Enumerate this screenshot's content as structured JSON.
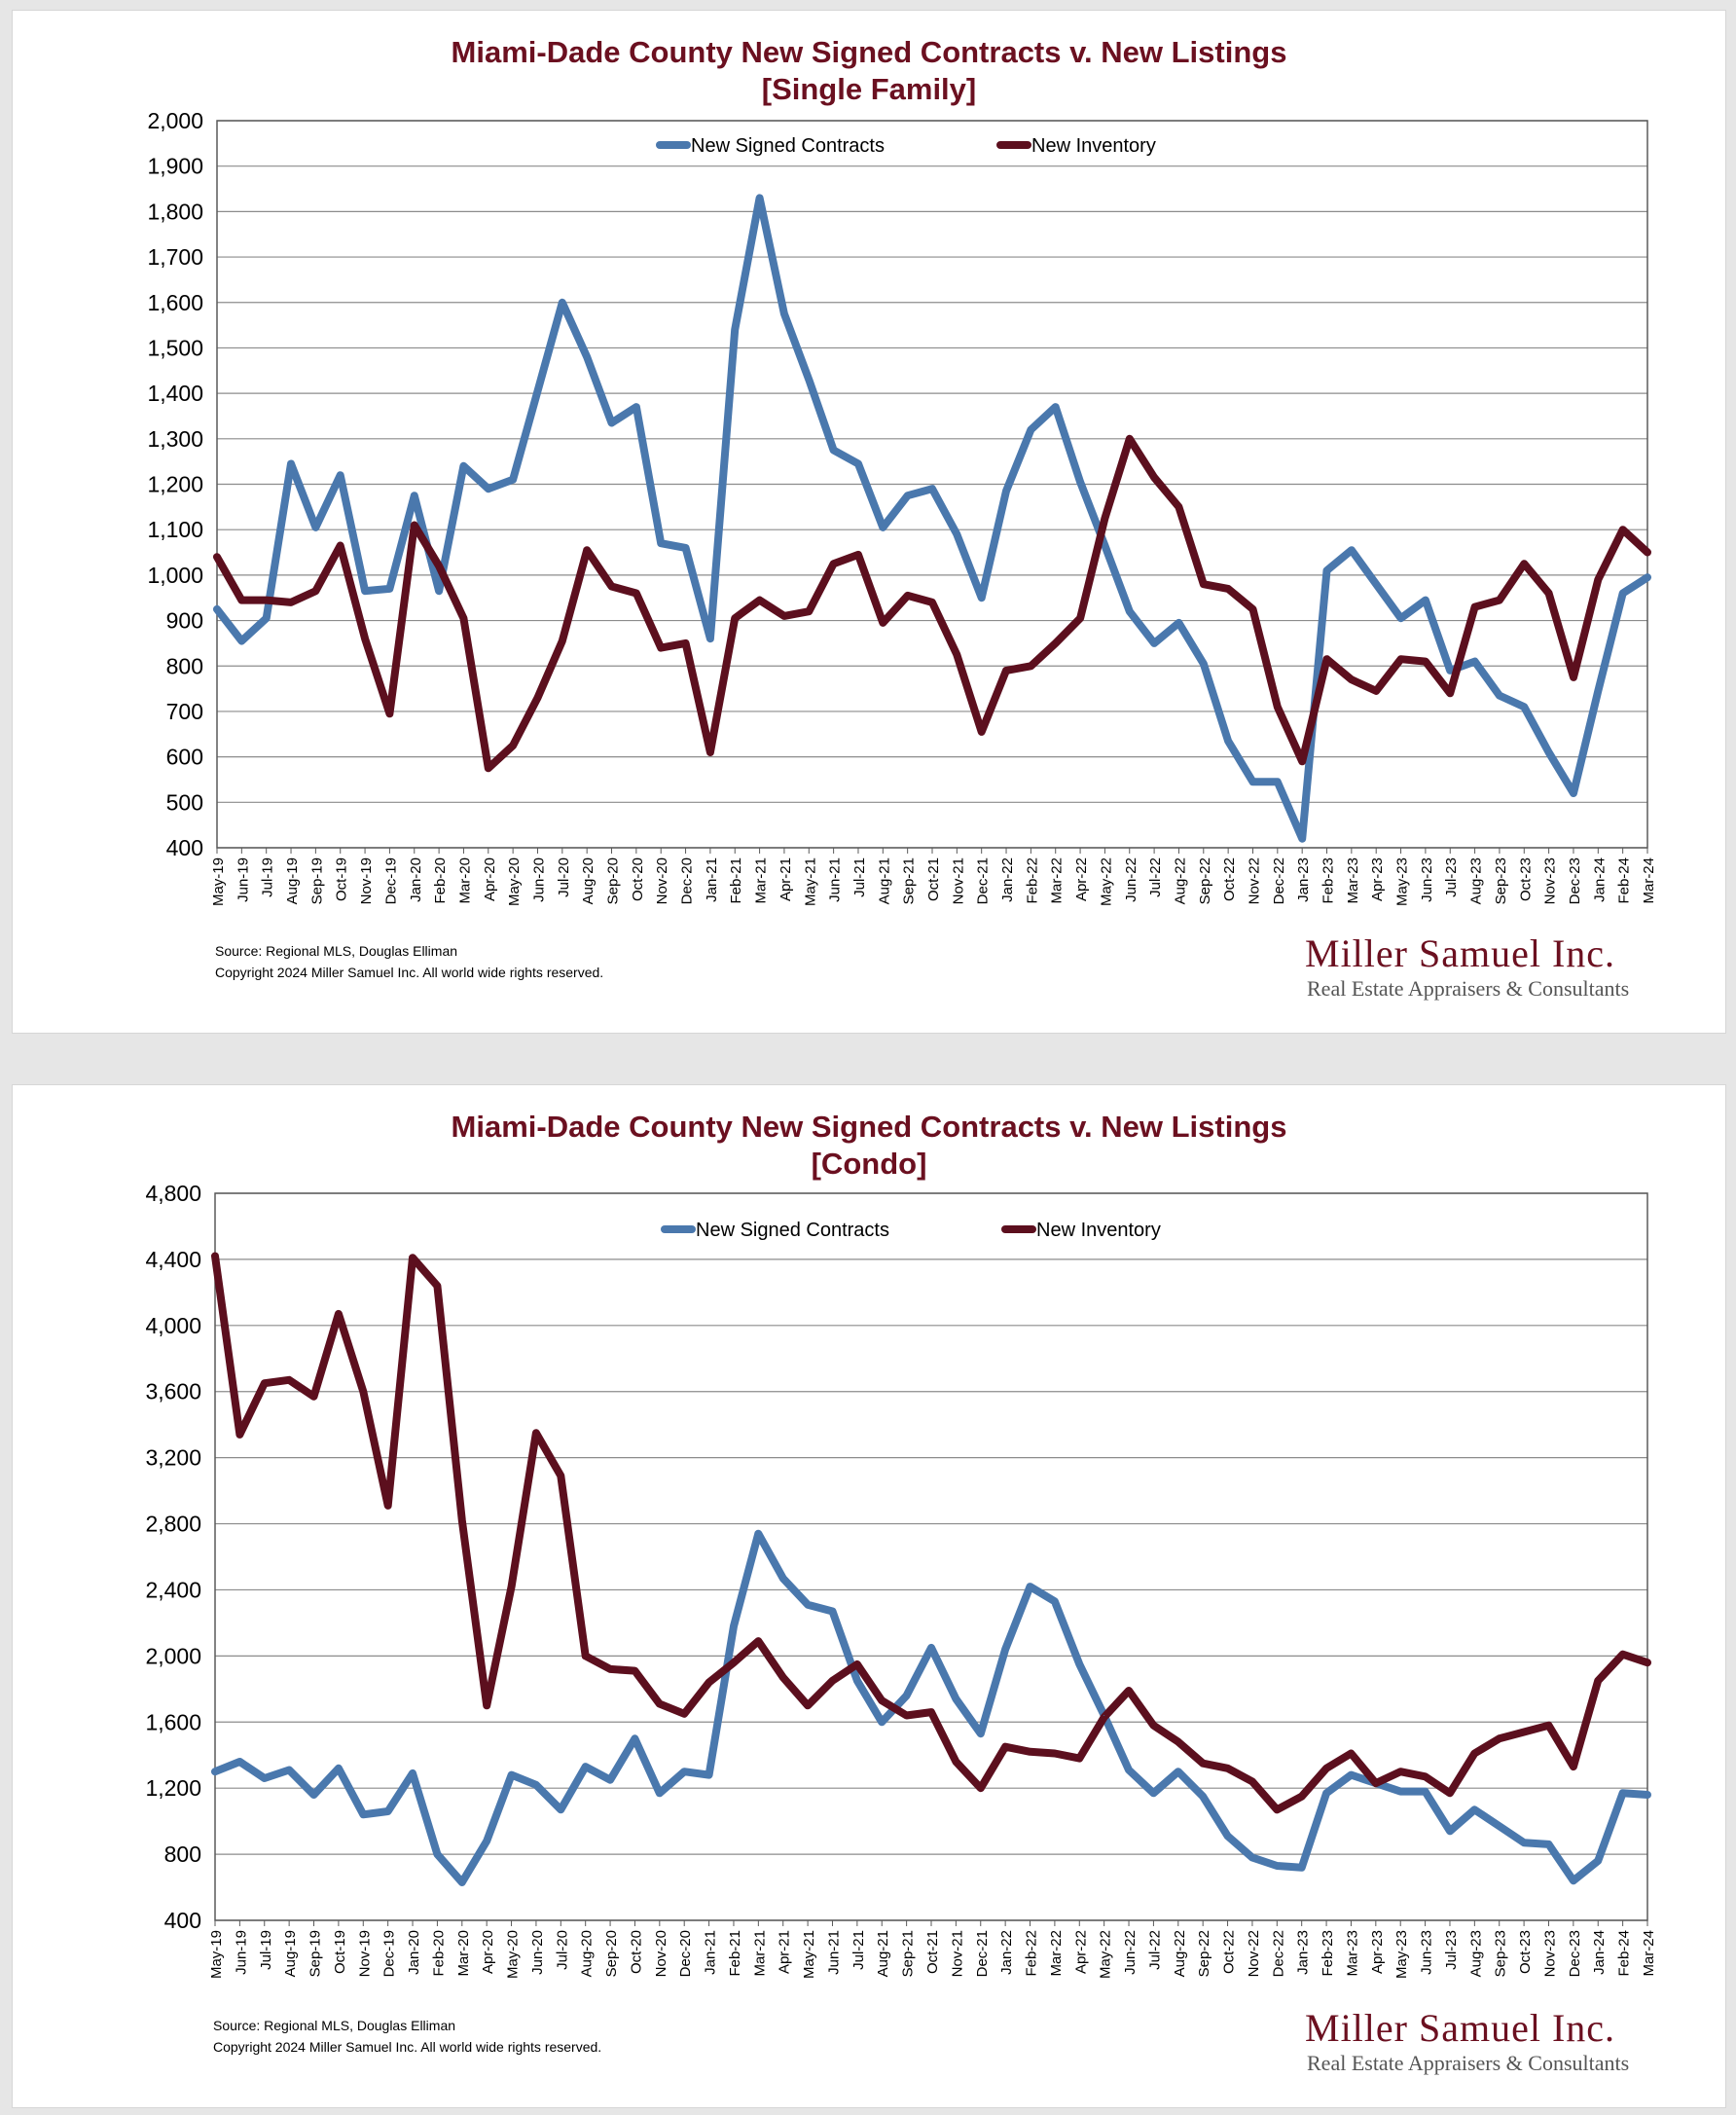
{
  "chart_data": [
    {
      "type": "line",
      "title": "Miami-Dade County New Signed Contracts v. New Listings",
      "subtitle": "[Single Family]",
      "xlabel": "",
      "ylabel": "",
      "ylim": [
        400,
        2000
      ],
      "yticks": [
        "400",
        "500",
        "600",
        "700",
        "800",
        "900",
        "1,000",
        "1,100",
        "1,200",
        "1,300",
        "1,400",
        "1,500",
        "1,600",
        "1,700",
        "1,800",
        "1,900",
        "2,000"
      ],
      "ytick_values": [
        400,
        500,
        600,
        700,
        800,
        900,
        1000,
        1100,
        1200,
        1300,
        1400,
        1500,
        1600,
        1700,
        1800,
        1900,
        2000
      ],
      "grid": true,
      "legend_position": "top-center",
      "categories": [
        "May-19",
        "Jun-19",
        "Jul-19",
        "Aug-19",
        "Sep-19",
        "Oct-19",
        "Nov-19",
        "Dec-19",
        "Jan-20",
        "Feb-20",
        "Mar-20",
        "Apr-20",
        "May-20",
        "Jun-20",
        "Jul-20",
        "Aug-20",
        "Sep-20",
        "Oct-20",
        "Nov-20",
        "Dec-20",
        "Jan-21",
        "Feb-21",
        "Mar-21",
        "Apr-21",
        "May-21",
        "Jun-21",
        "Jul-21",
        "Aug-21",
        "Sep-21",
        "Oct-21",
        "Nov-21",
        "Dec-21",
        "Jan-22",
        "Feb-22",
        "Mar-22",
        "Apr-22",
        "May-22",
        "Jun-22",
        "Jul-22",
        "Aug-22",
        "Sep-22",
        "Oct-22",
        "Nov-22",
        "Dec-22",
        "Jan-23",
        "Feb-23",
        "Mar-23",
        "Apr-23",
        "May-23",
        "Jun-23",
        "Jul-23",
        "Aug-23",
        "Sep-23",
        "Oct-23",
        "Nov-23",
        "Dec-23",
        "Jan-24",
        "Feb-24",
        "Mar-24"
      ],
      "series": [
        {
          "name": "New Signed Contracts",
          "color": "#4a78ad",
          "values": [
            925,
            855,
            905,
            1245,
            1105,
            1220,
            965,
            970,
            1175,
            965,
            1240,
            1190,
            1210,
            1405,
            1600,
            1480,
            1335,
            1370,
            1070,
            1060,
            860,
            1540,
            1830,
            1575,
            1430,
            1275,
            1245,
            1105,
            1175,
            1190,
            1090,
            950,
            1185,
            1320,
            1370,
            1205,
            1065,
            920,
            850,
            895,
            805,
            635,
            545,
            545,
            420,
            1010,
            1055,
            980,
            905,
            945,
            790,
            810,
            735,
            710,
            610,
            520,
            745,
            960,
            995
          ]
        },
        {
          "name": "New Inventory",
          "color": "#5c0f1e",
          "values": [
            1040,
            945,
            945,
            940,
            965,
            1065,
            860,
            695,
            1110,
            1020,
            905,
            575,
            625,
            730,
            855,
            1055,
            975,
            960,
            840,
            850,
            610,
            905,
            945,
            910,
            920,
            1025,
            1045,
            895,
            955,
            940,
            825,
            655,
            790,
            800,
            850,
            905,
            1125,
            1300,
            1215,
            1150,
            980,
            970,
            925,
            710,
            590,
            815,
            770,
            745,
            815,
            810,
            740,
            930,
            945,
            1025,
            960,
            775,
            990,
            1100,
            1050
          ]
        }
      ],
      "source": "Source: Regional MLS, Douglas Elliman",
      "copyright": "Copyright 2024 Miller Samuel Inc.  All world wide rights reserved.",
      "brand": "Miller Samuel Inc.",
      "brand_tagline": "Real Estate Appraisers & Consultants"
    },
    {
      "type": "line",
      "title": "Miami-Dade County New Signed Contracts v. New Listings",
      "subtitle": "[Condo]",
      "xlabel": "",
      "ylabel": "",
      "ylim": [
        400,
        4800
      ],
      "yticks": [
        "400",
        "800",
        "1,200",
        "1,600",
        "2,000",
        "2,400",
        "2,800",
        "3,200",
        "3,600",
        "4,000",
        "4,400",
        "4,800"
      ],
      "ytick_values": [
        400,
        800,
        1200,
        1600,
        2000,
        2400,
        2800,
        3200,
        3600,
        4000,
        4400,
        4800
      ],
      "grid": true,
      "legend_position": "top-center",
      "categories": [
        "May-19",
        "Jun-19",
        "Jul-19",
        "Aug-19",
        "Sep-19",
        "Oct-19",
        "Nov-19",
        "Dec-19",
        "Jan-20",
        "Feb-20",
        "Mar-20",
        "Apr-20",
        "May-20",
        "Jun-20",
        "Jul-20",
        "Aug-20",
        "Sep-20",
        "Oct-20",
        "Nov-20",
        "Dec-20",
        "Jan-21",
        "Feb-21",
        "Mar-21",
        "Apr-21",
        "May-21",
        "Jun-21",
        "Jul-21",
        "Aug-21",
        "Sep-21",
        "Oct-21",
        "Nov-21",
        "Dec-21",
        "Jan-22",
        "Feb-22",
        "Mar-22",
        "Apr-22",
        "May-22",
        "Jun-22",
        "Jul-22",
        "Aug-22",
        "Sep-22",
        "Oct-22",
        "Nov-22",
        "Dec-22",
        "Jan-23",
        "Feb-23",
        "Mar-23",
        "Apr-23",
        "May-23",
        "Jun-23",
        "Jul-23",
        "Aug-23",
        "Sep-23",
        "Oct-23",
        "Nov-23",
        "Dec-23",
        "Jan-24",
        "Feb-24",
        "Mar-24"
      ],
      "series": [
        {
          "name": "New Signed Contracts",
          "color": "#4a78ad",
          "values": [
            1300,
            1360,
            1260,
            1310,
            1160,
            1320,
            1040,
            1060,
            1290,
            800,
            630,
            880,
            1280,
            1220,
            1070,
            1330,
            1250,
            1500,
            1170,
            1300,
            1280,
            2180,
            2740,
            2470,
            2310,
            2270,
            1850,
            1600,
            1760,
            2050,
            1740,
            1530,
            2040,
            2420,
            2330,
            1950,
            1640,
            1310,
            1170,
            1300,
            1150,
            910,
            780,
            730,
            720,
            1170,
            1280,
            1230,
            1180,
            1180,
            940,
            1070,
            970,
            870,
            860,
            640,
            760,
            1170,
            1160
          ]
        },
        {
          "name": "New Inventory",
          "color": "#5c0f1e",
          "values": [
            4420,
            3340,
            3650,
            3670,
            3570,
            4070,
            3600,
            2910,
            4410,
            4240,
            2820,
            1700,
            2420,
            3350,
            3090,
            2000,
            1920,
            1910,
            1710,
            1650,
            1840,
            1960,
            2090,
            1870,
            1700,
            1850,
            1950,
            1730,
            1640,
            1660,
            1360,
            1200,
            1450,
            1420,
            1410,
            1380,
            1630,
            1790,
            1580,
            1480,
            1350,
            1320,
            1240,
            1070,
            1150,
            1320,
            1410,
            1230,
            1300,
            1270,
            1170,
            1410,
            1500,
            1540,
            1580,
            1330,
            1850,
            2010,
            1960
          ]
        }
      ],
      "source": "Source: Regional MLS, Douglas Elliman",
      "copyright": "Copyright 2024 Miller Samuel Inc.  All world wide rights reserved.",
      "brand": "Miller Samuel Inc.",
      "brand_tagline": "Real Estate Appraisers & Consultants"
    }
  ]
}
